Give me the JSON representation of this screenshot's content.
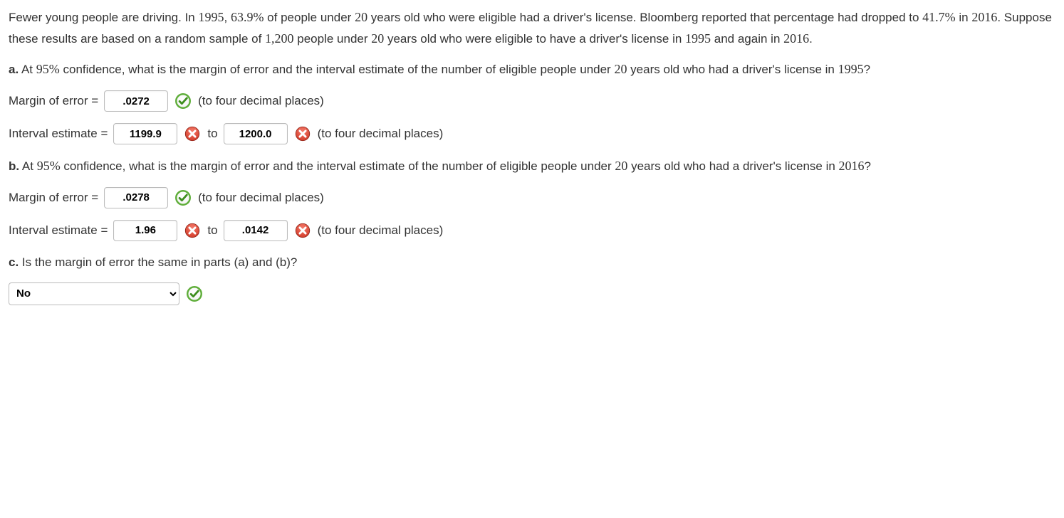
{
  "intro": {
    "s1a": "Fewer young people are driving. In ",
    "n1": "1995",
    "s1b": ", ",
    "n2": "63.9%",
    "s1c": " of people under ",
    "n3": "20",
    "s1d": " years old who were eligible had a driver's license. Bloomberg reported that percentage had dropped to ",
    "n4": "41.7%",
    "s1e": " in ",
    "n5": "2016",
    "s1f": ". Suppose these results are based on a random sample of ",
    "n6": "1,200",
    "s1g": " people under ",
    "n7": "20",
    "s1h": " years old who were eligible to have a driver's license in ",
    "n8": "1995",
    "s1i": " and again in ",
    "n9": "2016",
    "s1j": "."
  },
  "a": {
    "label": "a.",
    "q1": " At ",
    "pct": "95%",
    "q2": " confidence, what is the margin of error and the interval estimate of the number of eligible people under ",
    "age": "20",
    "q3": " years old who had a driver's license in ",
    "year": "1995",
    "q4": "?",
    "moe_label": "Margin of error =",
    "moe_value": ".0272",
    "hint4": "(to four decimal places)",
    "int_label": "Interval estimate =",
    "int_lo": "1199.9",
    "to": "to",
    "int_hi": "1200.0",
    "moe_correct": true,
    "int_lo_correct": false,
    "int_hi_correct": false
  },
  "b": {
    "label": "b.",
    "q1": " At ",
    "pct": "95%",
    "q2": " confidence, what is the margin of error and the interval estimate of the number of eligible people under ",
    "age": "20",
    "q3": " years old who had a driver's license in ",
    "year": "2016",
    "q4": "?",
    "moe_label": "Margin of error =",
    "moe_value": ".0278",
    "hint4": "(to four decimal places)",
    "int_label": "Interval estimate =",
    "int_lo": "1.96",
    "to": "to",
    "int_hi": ".0142",
    "moe_correct": true,
    "int_lo_correct": false,
    "int_hi_correct": false
  },
  "c": {
    "label": "c.",
    "q": " Is the margin of error the same in parts (a) and (b)?",
    "value": "No",
    "correct": true
  },
  "colors": {
    "correct_ring": "#5fae3a",
    "correct_check": "#3e8e1f",
    "wrong_fill": "#d23c2a",
    "wrong_shadow": "#8a1f14"
  }
}
